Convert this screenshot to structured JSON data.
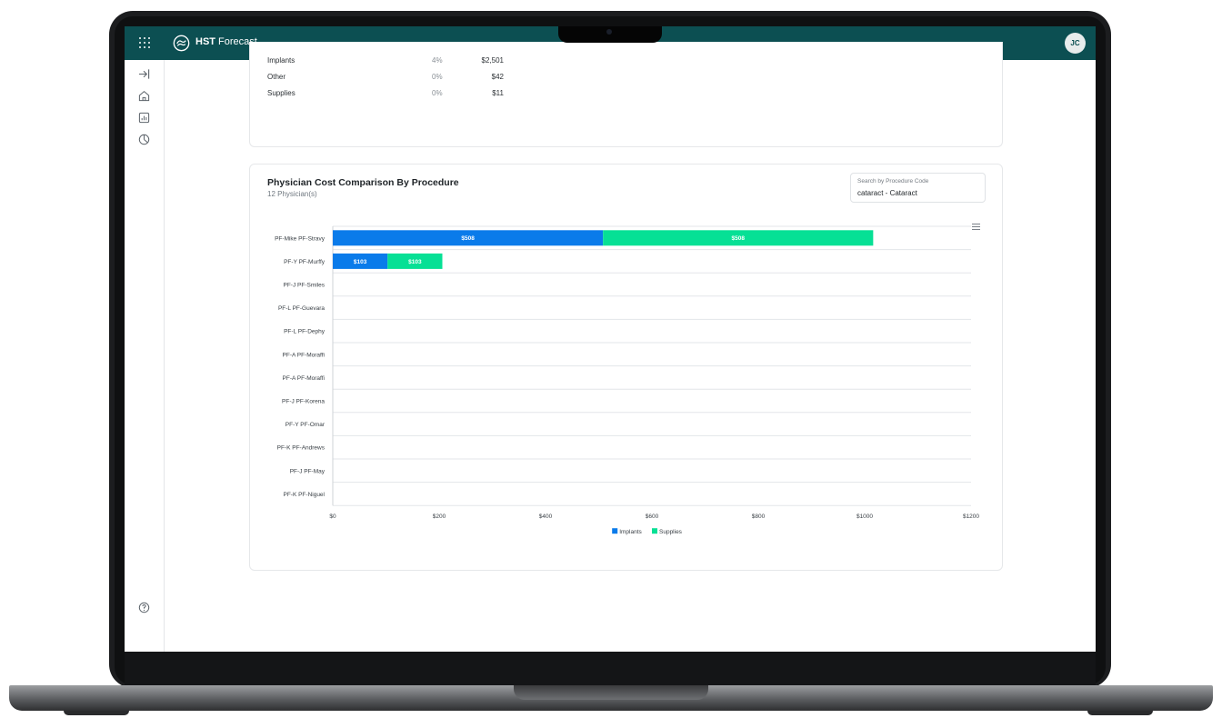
{
  "app": {
    "brand_bold": "HST",
    "brand_rest": " Forecast",
    "user_initials": "JC"
  },
  "cost_rows": [
    {
      "label": "Implants",
      "pct": "4%",
      "amount": "$2,501"
    },
    {
      "label": "Other",
      "pct": "0%",
      "amount": "$42"
    },
    {
      "label": "Supplies",
      "pct": "0%",
      "amount": "$11"
    }
  ],
  "card": {
    "title": "Physician Cost Comparison By Procedure",
    "subtitle": "12 Physician(s)"
  },
  "search": {
    "label": "Search by Procedure Code",
    "value": "cataract - Cataract"
  },
  "colors": {
    "header_bg": "#0c4f52",
    "implants": "#0a7bea",
    "supplies": "#06e095"
  },
  "icons": {
    "apps": "apps-grid-icon",
    "logo": "hst-logo-icon",
    "collapse": "collapse-sidebar-icon",
    "home": "home-icon",
    "report": "report-icon",
    "analytics": "pie-chart-icon",
    "help": "help-icon",
    "menu": "chart-menu-icon"
  },
  "chart_data": {
    "type": "bar",
    "orientation": "horizontal",
    "stacked": true,
    "categories": [
      "PF-Mike PF-Stravy",
      "PF-Y PF-Murffy",
      "PF-J PF-Smiles",
      "PF-L PF-Guevara",
      "PF-L PF-Dephy",
      "PF-A PF-Moraffi",
      "PF-A PF-Moraffi",
      "PF-J PF-Korena",
      "PF-Y PF-Omar",
      "PF-K PF-Andrews",
      "PF-J PF-May",
      "PF-K PF-Niguel"
    ],
    "series": [
      {
        "name": "Implants",
        "color": "#0a7bea",
        "values": [
          508,
          103,
          0,
          0,
          0,
          0,
          0,
          0,
          0,
          0,
          0,
          0
        ],
        "labels": [
          "$508",
          "$103",
          "",
          "",
          "",
          "",
          "",
          "",
          "",
          "",
          "",
          ""
        ]
      },
      {
        "name": "Supplies",
        "color": "#06e095",
        "values": [
          508,
          103,
          0,
          0,
          0,
          0,
          0,
          0,
          0,
          0,
          0,
          0
        ],
        "labels": [
          "$508",
          "$103",
          "",
          "",
          "",
          "",
          "",
          "",
          "",
          "",
          "",
          ""
        ]
      }
    ],
    "xlim": [
      0,
      1200
    ],
    "xticks": [
      0,
      200,
      400,
      600,
      800,
      1000,
      1200
    ],
    "xtick_labels": [
      "$0",
      "$200",
      "$400",
      "$600",
      "$800",
      "$1000",
      "$1200"
    ],
    "grid": true,
    "legend": "bottom-center"
  }
}
